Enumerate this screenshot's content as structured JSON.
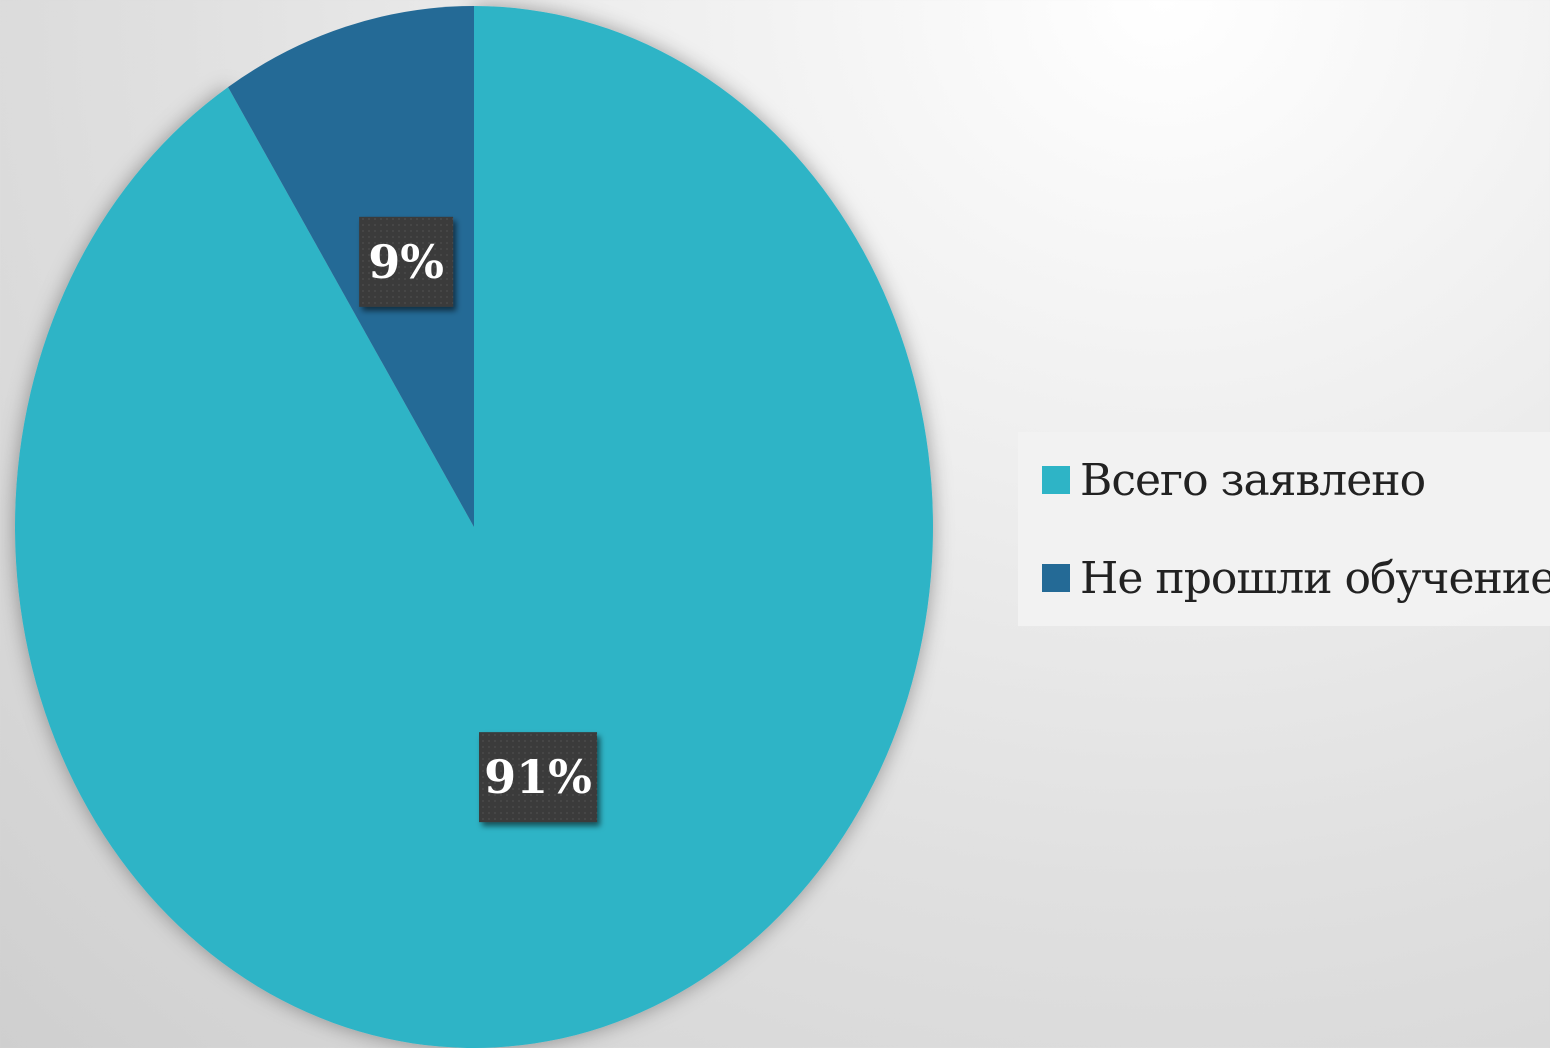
{
  "chart_data": {
    "type": "pie",
    "title": "",
    "categories": [
      "Всего заявлено",
      "Не прошли обучение"
    ],
    "values": [
      91,
      9
    ],
    "labels": [
      "91%",
      "9%"
    ],
    "colors": [
      "#2eb4c6",
      "#246a96"
    ],
    "start_angle_deg": 0,
    "direction": "clockwise",
    "legend_position": "right",
    "data_label_style": {
      "background": "#3a3a3a",
      "text_color": "#ffffff"
    }
  }
}
